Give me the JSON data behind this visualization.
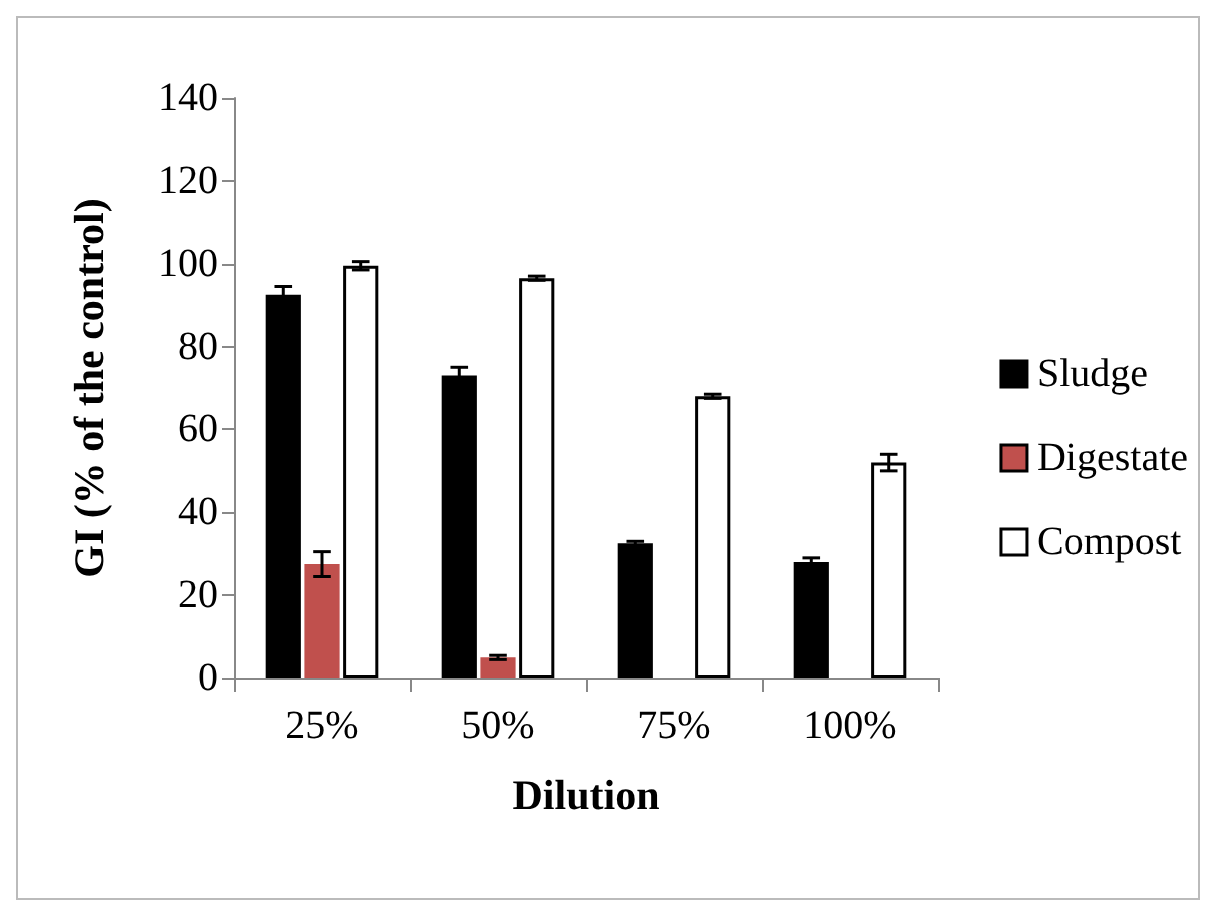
{
  "chart_data": {
    "type": "bar",
    "xlabel": "Dilution",
    "ylabel": "GI (% of the control)",
    "categories": [
      "25%",
      "50%",
      "75%",
      "100%"
    ],
    "series": [
      {
        "name": "Sludge",
        "color": "#000000",
        "values": [
          92.5,
          73,
          32.5,
          28
        ],
        "errors": [
          2,
          2,
          0.5,
          1
        ]
      },
      {
        "name": "Digestate",
        "color": "#c0504d",
        "values": [
          27.5,
          5,
          0,
          0
        ],
        "errors": [
          3,
          0.5,
          null,
          null
        ]
      },
      {
        "name": "Compost",
        "color": "#ffffff",
        "values": [
          99.5,
          96.5,
          68,
          52
        ],
        "errors": [
          1,
          0.5,
          0.5,
          2
        ]
      }
    ],
    "ylim": [
      0,
      140
    ],
    "yticks": [
      0,
      20,
      40,
      60,
      80,
      100,
      120,
      140
    ],
    "grid": false,
    "legend": "right"
  }
}
